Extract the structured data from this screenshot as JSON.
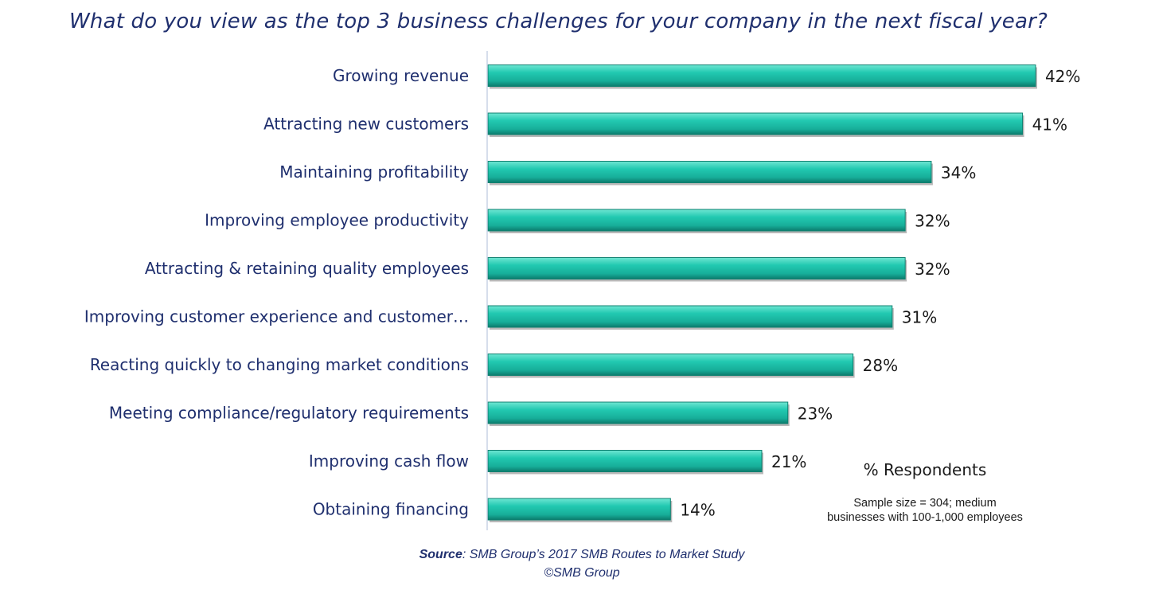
{
  "chart_data": {
    "type": "bar",
    "orientation": "horizontal",
    "title": "What do you view as the top 3 business challenges for your company in the next fiscal year?",
    "categories": [
      "Growing revenue",
      "Attracting new customers",
      "Maintaining profitability",
      "Improving employee productivity",
      "Attracting & retaining quality employees",
      "Improving customer experience and customer…",
      "Reacting quickly to changing market conditions",
      "Meeting compliance/regulatory requirements",
      "Improving cash flow",
      "Obtaining financing"
    ],
    "values": [
      42,
      41,
      34,
      32,
      32,
      31,
      28,
      23,
      21,
      14
    ],
    "value_labels": [
      "42%",
      "41%",
      "34%",
      "32%",
      "32%",
      "31%",
      "28%",
      "23%",
      "21%",
      "14%"
    ],
    "xlabel": "% Respondents",
    "ylabel": "",
    "xlim": [
      0,
      45
    ],
    "grid": false,
    "legend": "none",
    "bar_color": "#1FBFA8"
  },
  "annotations": {
    "respondents_label": "% Respondents",
    "sample_note_line1": "Sample size = 304; medium",
    "sample_note_line2": "businesses with 100-1,000 employees"
  },
  "footer": {
    "source_label": "Source",
    "source_text": ": SMB Group’s 2017 SMB Routes to Market Study",
    "copyright": "©SMB Group"
  },
  "colors": {
    "title": "#1F2F6E",
    "bar": "#1FBFA8",
    "bar_light": "#8FF0E0",
    "bar_dark": "#0E7F70",
    "axis": "#C9D3E6"
  }
}
